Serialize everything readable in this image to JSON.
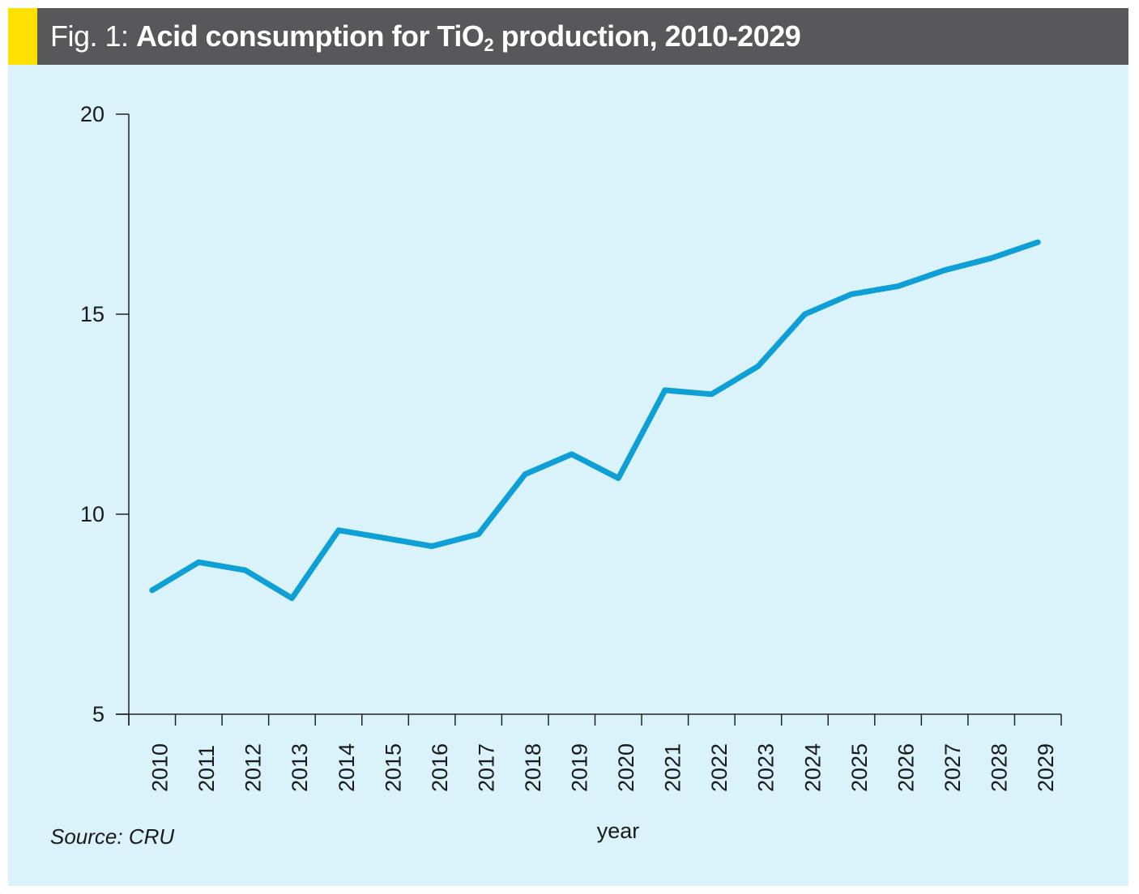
{
  "header": {
    "prefix": "Fig. 1: ",
    "title_main": "Acid consumption for TiO",
    "title_sub": "2",
    "title_rest": " production, 2010-2029",
    "accent_color": "#ffe000",
    "bar_color": "#58585a"
  },
  "source": "Source: CRU",
  "chart_data": {
    "type": "line",
    "title": "Acid consumption for TiO2 production, 2010-2029",
    "xlabel": "year",
    "ylabel": "",
    "ylim": [
      5,
      20
    ],
    "yticks": [
      5,
      10,
      15,
      20
    ],
    "categories": [
      "2010",
      "2011",
      "2012",
      "2013",
      "2014",
      "2015",
      "2016",
      "2017",
      "2018",
      "2019",
      "2020",
      "2021",
      "2022",
      "2023",
      "2024",
      "2025",
      "2026",
      "2027",
      "2028",
      "2029"
    ],
    "values": [
      8.1,
      8.8,
      8.6,
      7.9,
      9.6,
      9.4,
      9.2,
      9.5,
      11.0,
      11.5,
      10.9,
      13.1,
      13.0,
      13.7,
      15.0,
      15.5,
      15.7,
      16.1,
      16.4,
      16.8
    ],
    "line_color": "#0e9fd6",
    "background": "#daf2fa",
    "grid": false,
    "legend": "none"
  }
}
